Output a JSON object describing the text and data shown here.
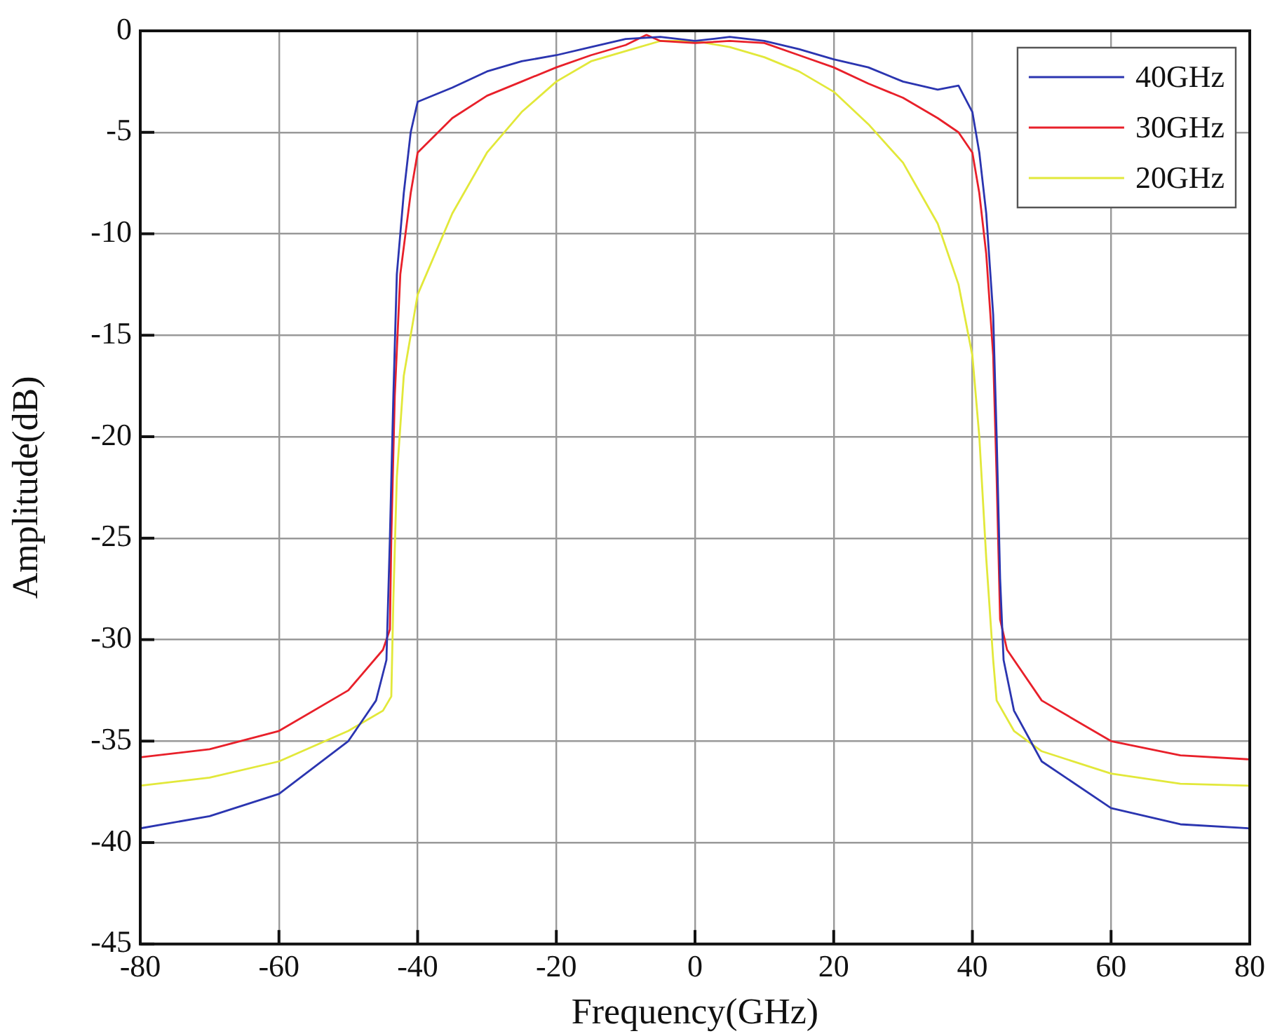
{
  "chart_data": {
    "type": "line",
    "xlabel": "Frequency(GHz)",
    "ylabel": "Amplitude(dB)",
    "xlim": [
      -80,
      80
    ],
    "xticks": [
      -80,
      -60,
      -40,
      -20,
      0,
      20,
      40,
      60,
      80
    ],
    "ylim": [
      -45,
      0
    ],
    "yticks": [
      -45,
      -40,
      -35,
      -30,
      -25,
      -20,
      -15,
      -10,
      -5,
      0
    ],
    "grid": true,
    "legend": "top right",
    "marker": "none",
    "line_style": "solid",
    "series": [
      {
        "name": "40GHz",
        "color": "#2b35b0",
        "x": [
          -80,
          -70,
          -60,
          -50,
          -46,
          -44.5,
          -44,
          -43.5,
          -43,
          -42,
          -41,
          -40,
          -35,
          -30,
          -25,
          -20,
          -15,
          -10,
          -5,
          0,
          5,
          10,
          15,
          20,
          25,
          30,
          35,
          38,
          40,
          41,
          42,
          43,
          43.5,
          44,
          44.5,
          46,
          50,
          60,
          70,
          80
        ],
        "values": [
          -39.3,
          -38.7,
          -37.6,
          -35,
          -33,
          -31,
          -25,
          -18,
          -12,
          -8,
          -5,
          -3.5,
          -2.8,
          -2,
          -1.5,
          -1.2,
          -0.8,
          -0.4,
          -0.3,
          -0.5,
          -0.3,
          -0.5,
          -0.9,
          -1.4,
          -1.8,
          -2.5,
          -2.9,
          -2.7,
          -4,
          -6,
          -9,
          -14,
          -20,
          -27,
          -31,
          -33.5,
          -36,
          -38.3,
          -39.1,
          -39.3
        ]
      },
      {
        "name": "30GHz",
        "color": "#e8202a",
        "x": [
          -80,
          -70,
          -60,
          -50,
          -45,
          -44,
          -43.8,
          -43.3,
          -42.5,
          -41,
          -40,
          -35,
          -30,
          -25,
          -20,
          -15,
          -10,
          -7,
          -5,
          0,
          5,
          10,
          15,
          20,
          25,
          30,
          35,
          38,
          40,
          41,
          42,
          43,
          43.5,
          44,
          45,
          50,
          60,
          70,
          80
        ],
        "values": [
          -35.8,
          -35.4,
          -34.5,
          -32.5,
          -30.5,
          -29.5,
          -25,
          -18,
          -12,
          -8,
          -6,
          -4.3,
          -3.2,
          -2.5,
          -1.8,
          -1.2,
          -0.7,
          -0.2,
          -0.5,
          -0.6,
          -0.5,
          -0.6,
          -1.2,
          -1.8,
          -2.6,
          -3.3,
          -4.3,
          -5,
          -6,
          -8,
          -11,
          -16,
          -22,
          -29,
          -30.5,
          -33,
          -35,
          -35.7,
          -35.9
        ]
      },
      {
        "name": "20GHz",
        "color": "#e2e83a",
        "x": [
          -80,
          -70,
          -60,
          -50,
          -45,
          -43.8,
          -43.5,
          -43,
          -42,
          -40,
          -35,
          -30,
          -25,
          -20,
          -15,
          -10,
          -5,
          0,
          5,
          10,
          15,
          20,
          25,
          30,
          35,
          38,
          40,
          41,
          42,
          43,
          43.5,
          46,
          50,
          60,
          70,
          80
        ],
        "values": [
          -37.2,
          -36.8,
          -36,
          -34.5,
          -33.5,
          -32.8,
          -28,
          -22,
          -17,
          -13,
          -9,
          -6,
          -4,
          -2.5,
          -1.5,
          -1,
          -0.5,
          -0.5,
          -0.8,
          -1.3,
          -2,
          -3,
          -4.6,
          -6.5,
          -9.5,
          -12.5,
          -16,
          -20,
          -26,
          -31,
          -33,
          -34.5,
          -35.5,
          -36.6,
          -37.1,
          -37.2
        ]
      }
    ]
  }
}
